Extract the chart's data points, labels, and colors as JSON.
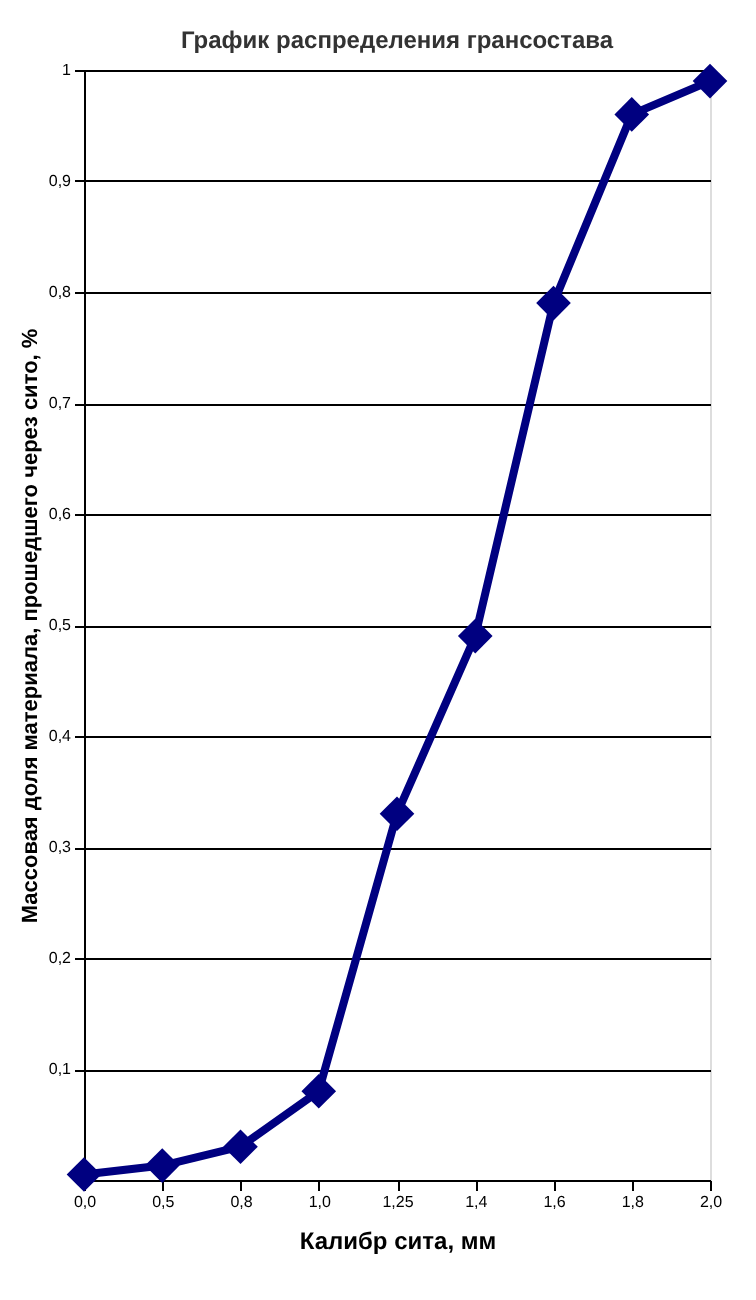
{
  "chart_data": {
    "type": "line",
    "title": "График распределения грансостава",
    "xlabel": "Калибр сита, мм",
    "ylabel": "Массовая доля материала, прошедшего через сито, %",
    "categories": [
      "0,0",
      "0,5",
      "0,8",
      "1,0",
      "1,25",
      "1,4",
      "1,6",
      "1,8",
      "2,0"
    ],
    "series": [
      {
        "color": "#000080",
        "values": [
          0.005,
          0.013,
          0.03,
          0.08,
          0.33,
          0.49,
          0.79,
          0.96,
          0.99
        ]
      }
    ],
    "ylim": [
      0,
      1
    ],
    "yticks": [
      {
        "value": 0,
        "label": null
      },
      {
        "value": 0.1,
        "label": "0,1"
      },
      {
        "value": 0.2,
        "label": "0,2"
      },
      {
        "value": 0.3,
        "label": "0,3"
      },
      {
        "value": 0.4,
        "label": "0,4"
      },
      {
        "value": 0.5,
        "label": "0,5"
      },
      {
        "value": 0.6,
        "label": "0,6"
      },
      {
        "value": 0.7,
        "label": "0,7"
      },
      {
        "value": 0.8,
        "label": "0,8"
      },
      {
        "value": 0.9,
        "label": "0,9"
      },
      {
        "value": 1,
        "label": "1"
      }
    ],
    "grid": "y",
    "marker": "diamond",
    "line_style": "solid"
  }
}
